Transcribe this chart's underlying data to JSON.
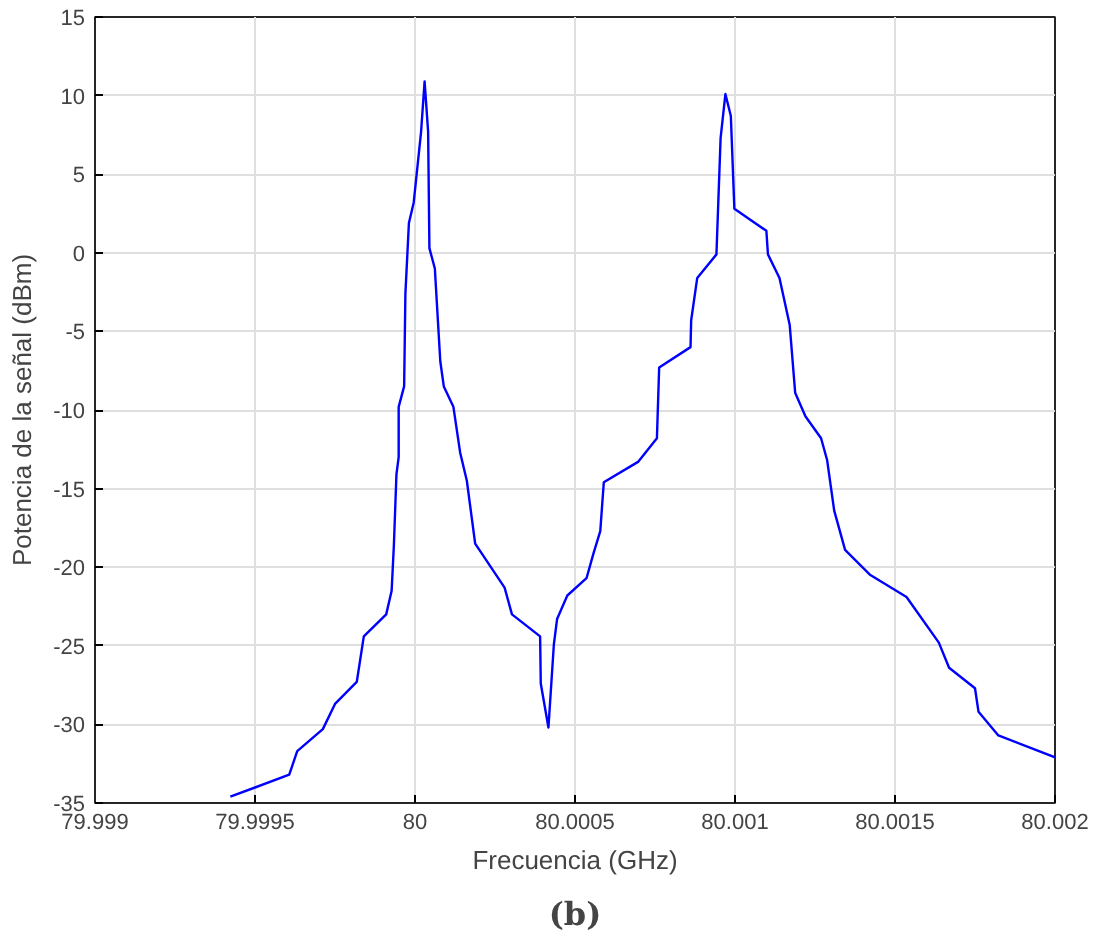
{
  "chart_data": {
    "type": "line",
    "xlabel": "Frecuencia (GHz)",
    "ylabel": "Potencia de la señal (dBm)",
    "annotations": [
      "(b)"
    ],
    "x": [
      79.999423,
      79.999607,
      79.999632,
      79.999712,
      79.99975,
      79.999818,
      79.99984,
      79.99991,
      79.999927,
      79.999934,
      79.999942,
      79.999949,
      79.999949,
      79.999966,
      79.99997,
      79.999981,
      79.999996,
      80.000019,
      80.00003,
      80.000041,
      80.000045,
      80.000062,
      80.000079,
      80.00009,
      80.00012,
      80.000141,
      80.000162,
      80.000188,
      80.00028,
      80.000303,
      80.000391,
      80.000393,
      80.000417,
      80.000434,
      80.000444,
      80.000476,
      80.000536,
      80.000558,
      80.000579,
      80.00059,
      80.000697,
      80.000756,
      80.000763,
      80.000861,
      80.000863,
      80.000882,
      80.000942,
      80.000955,
      80.00097,
      80.000987,
      80.000998,
      80.001098,
      80.001103,
      80.001139,
      80.001171,
      80.001188,
      80.00122,
      80.001269,
      80.001288,
      80.00131,
      80.001344,
      80.001423,
      80.001536,
      80.001637,
      80.001669,
      80.00175,
      80.001761,
      80.001823,
      80.002
    ],
    "series": [
      {
        "color": "#0000ff",
        "values": [
          -34.6,
          -33.2,
          -31.7,
          -30.3,
          -28.7,
          -27.3,
          -24.4,
          -23.0,
          -21.5,
          -18.6,
          -14.1,
          -13.0,
          -9.8,
          -8.5,
          -2.6,
          1.9,
          3.2,
          7.7,
          10.9,
          7.7,
          0.3,
          -1.0,
          -6.9,
          -8.5,
          -9.8,
          -12.7,
          -14.5,
          -18.5,
          -21.3,
          -23.0,
          -24.4,
          -27.4,
          -30.2,
          -24.9,
          -23.3,
          -21.8,
          -20.7,
          -19.1,
          -17.7,
          -14.6,
          -13.3,
          -11.8,
          -7.3,
          -6.0,
          -4.3,
          -1.6,
          -0.1,
          7.3,
          10.1,
          8.7,
          2.8,
          1.4,
          -0.1,
          -1.6,
          -4.6,
          -8.9,
          -10.4,
          -11.8,
          -13.2,
          -16.4,
          -18.9,
          -20.5,
          -21.9,
          -24.8,
          -26.4,
          -27.7,
          -29.2,
          -30.7,
          -32.1
        ]
      }
    ],
    "xlim": [
      79.999,
      80.002
    ],
    "ylim": [
      -35,
      15
    ],
    "xticks": [
      79.999,
      79.9995,
      80,
      80.0005,
      80.001,
      80.0015,
      80.002
    ],
    "yticks": [
      -35,
      -30,
      -25,
      -20,
      -15,
      -10,
      -5,
      0,
      5,
      10,
      15
    ],
    "grid": true,
    "line_style": "solid"
  }
}
